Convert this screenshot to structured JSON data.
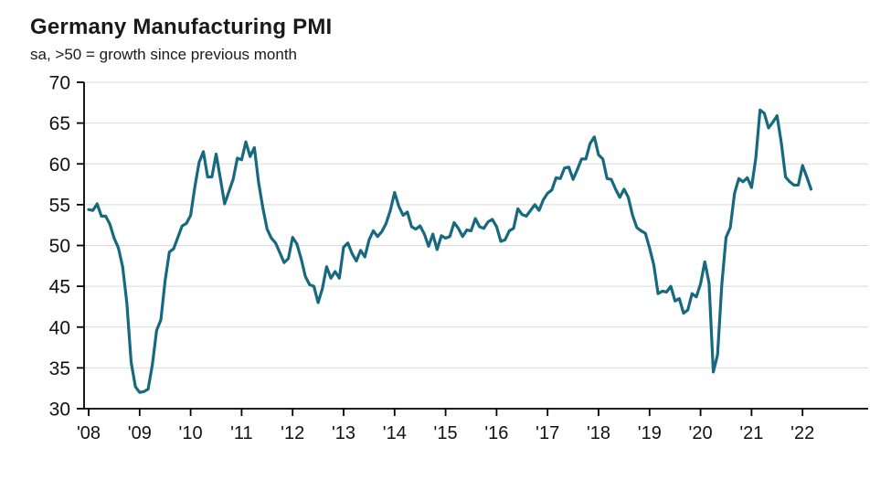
{
  "chart_data": {
    "type": "line",
    "title": "Germany Manufacturing PMI",
    "subtitle": "sa, >50 = growth since previous month",
    "x_tick_labels": [
      "'08",
      "'09",
      "'10",
      "'11",
      "'12",
      "'13",
      "'14",
      "'15",
      "'16",
      "'17",
      "'18",
      "'19",
      "'20",
      "'21",
      "'22"
    ],
    "ylim": [
      30,
      70
    ],
    "y_ticks": [
      30,
      35,
      40,
      45,
      50,
      55,
      60,
      65,
      70
    ],
    "grid": true,
    "legend": "none",
    "line_color": "#17697f",
    "grid_color": "#d9d9d9",
    "axis_color": "#000000",
    "text_color": "#111111",
    "series": [
      {
        "name": "Germany Manufacturing PMI",
        "start_year": 2008,
        "start_month": 1,
        "frequency": "monthly",
        "values": [
          54.4,
          54.3,
          55.1,
          53.6,
          53.6,
          52.6,
          50.9,
          49.7,
          47.4,
          42.9,
          35.7,
          32.7,
          32.0,
          32.1,
          32.4,
          35.4,
          39.6,
          40.9,
          45.7,
          49.2,
          49.6,
          51.0,
          52.4,
          52.7,
          53.7,
          57.2,
          60.2,
          61.5,
          58.4,
          58.4,
          61.2,
          58.2,
          55.1,
          56.6,
          58.1,
          60.7,
          60.5,
          62.7,
          60.9,
          62.0,
          57.7,
          54.6,
          52.0,
          50.9,
          50.3,
          49.1,
          47.9,
          48.4,
          51.0,
          50.2,
          48.4,
          46.2,
          45.2,
          45.0,
          43.0,
          44.7,
          47.4,
          46.0,
          46.8,
          46.0,
          49.8,
          50.3,
          49.0,
          48.1,
          49.4,
          48.6,
          50.7,
          51.8,
          51.1,
          51.7,
          52.7,
          54.3,
          56.5,
          54.8,
          53.7,
          54.1,
          52.3,
          52.0,
          52.4,
          51.4,
          49.9,
          51.4,
          49.5,
          51.2,
          50.9,
          51.1,
          52.8,
          52.1,
          51.1,
          51.9,
          51.8,
          53.3,
          52.3,
          52.1,
          52.9,
          53.2,
          52.3,
          50.5,
          50.7,
          51.8,
          52.1,
          54.5,
          53.8,
          53.6,
          54.3,
          55.0,
          54.3,
          55.6,
          56.4,
          56.8,
          58.3,
          58.2,
          59.5,
          59.6,
          58.1,
          59.3,
          60.6,
          60.6,
          62.5,
          63.3,
          61.1,
          60.6,
          58.2,
          58.1,
          56.9,
          55.9,
          56.9,
          55.9,
          53.7,
          52.2,
          51.8,
          51.5,
          49.7,
          47.6,
          44.1,
          44.4,
          44.3,
          45.0,
          43.2,
          43.5,
          41.7,
          42.1,
          44.1,
          43.7,
          45.3,
          48.0,
          45.4,
          34.5,
          36.6,
          45.2,
          51.0,
          52.2,
          56.4,
          58.2,
          57.8,
          58.3,
          57.1,
          60.7,
          66.6,
          66.2,
          64.4,
          65.1,
          65.9,
          62.6,
          58.4,
          57.8,
          57.4,
          57.4,
          59.8,
          58.4,
          56.9
        ]
      }
    ]
  }
}
